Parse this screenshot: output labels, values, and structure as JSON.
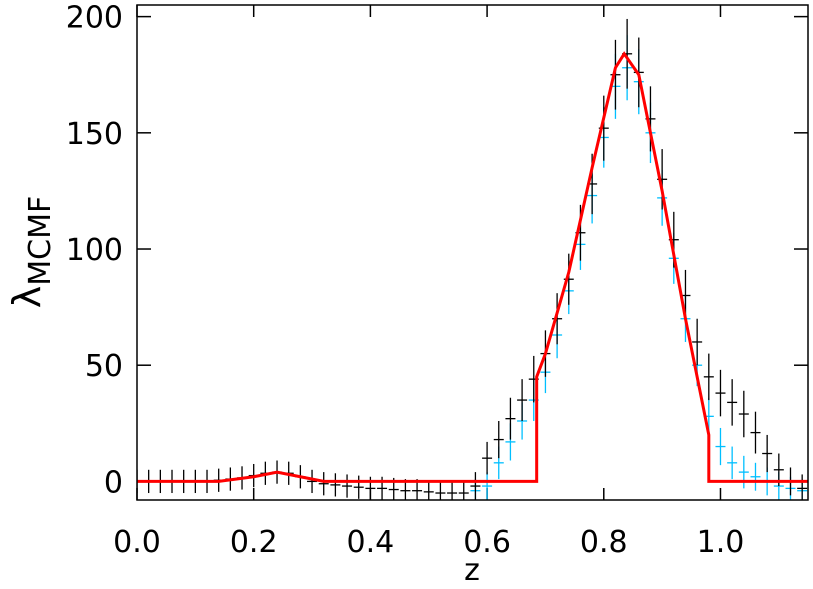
{
  "chart_data": {
    "type": "scatter",
    "xlabel": "z",
    "ylabel": "λ",
    "ylabel_sub": "MCMF",
    "xlim": [
      0,
      1.15
    ],
    "ylim": [
      -8,
      205
    ],
    "xticks": [
      {
        "value": 0,
        "label": "0.0"
      },
      0.2,
      0.4,
      0.6,
      0.8,
      {
        "value": 1,
        "label": "1.0"
      }
    ],
    "yticks": [
      0,
      50,
      100,
      150,
      200
    ],
    "x": [
      0,
      0.02,
      0.04,
      0.06,
      0.08,
      0.1,
      0.12,
      0.14,
      0.16,
      0.18,
      0.2,
      0.22,
      0.24,
      0.26,
      0.28,
      0.3,
      0.32,
      0.34,
      0.36,
      0.38,
      0.4,
      0.42,
      0.44,
      0.46,
      0.48,
      0.5,
      0.52,
      0.54,
      0.56,
      0.58,
      0.6,
      0.62,
      0.64,
      0.66,
      0.68,
      0.7,
      0.72,
      0.74,
      0.76,
      0.78,
      0.8,
      0.82,
      0.84,
      0.86,
      0.88,
      0.9,
      0.92,
      0.94,
      0.96,
      0.98,
      1,
      1.02,
      1.04,
      1.06,
      1.08,
      1.1,
      1.12,
      1.14
    ],
    "series": [
      {
        "color": "#00bfff",
        "values": [
          null,
          null,
          null,
          null,
          null,
          null,
          null,
          null,
          null,
          null,
          null,
          null,
          null,
          null,
          null,
          null,
          null,
          null,
          null,
          null,
          null,
          null,
          null,
          null,
          null,
          null,
          null,
          null,
          null,
          -4,
          -2,
          8,
          17,
          26,
          35,
          47,
          63,
          82,
          102,
          123,
          148,
          170,
          178,
          172,
          150,
          122,
          96,
          70,
          50,
          28,
          15,
          8,
          4,
          2,
          0,
          -2,
          -3,
          -4
        ],
        "errors": [
          null,
          null,
          null,
          null,
          null,
          null,
          null,
          null,
          null,
          null,
          null,
          null,
          null,
          null,
          null,
          null,
          null,
          null,
          null,
          null,
          null,
          null,
          null,
          null,
          null,
          null,
          null,
          null,
          null,
          5,
          6,
          7,
          8,
          8,
          9,
          9,
          10,
          10,
          11,
          12,
          13,
          14,
          14,
          14,
          13,
          12,
          11,
          10,
          9,
          8,
          8,
          7,
          7,
          6,
          6,
          6,
          5,
          5
        ]
      },
      {
        "color": "#000000",
        "values": [
          0,
          0,
          0,
          0,
          0,
          0,
          0,
          0.5,
          1,
          1.5,
          2.5,
          3.5,
          4,
          3.5,
          2,
          0,
          -1,
          -1.5,
          -2,
          -2.5,
          -3,
          -3,
          -3.5,
          -4,
          -4,
          -4.5,
          -5,
          -5,
          -5,
          -2,
          10,
          18,
          27,
          35,
          44,
          55,
          70,
          87,
          107,
          128,
          152,
          175,
          184,
          176,
          156,
          130,
          104,
          80,
          60,
          45,
          38,
          34,
          29,
          21,
          12,
          5,
          0,
          -3
        ],
        "errors": [
          5,
          5,
          5,
          5,
          5,
          5,
          5,
          5,
          5,
          5,
          5,
          5,
          5,
          5,
          5,
          5,
          5,
          5,
          5,
          5,
          5,
          5,
          5,
          5,
          5,
          5,
          5,
          5,
          5,
          6,
          7,
          8,
          9,
          9,
          10,
          10,
          11,
          11,
          12,
          13,
          14,
          15,
          15,
          15,
          14,
          13,
          12,
          11,
          10,
          10,
          10,
          10,
          10,
          9,
          8,
          7,
          6,
          6
        ]
      }
    ],
    "model": {
      "color": "#ff0000",
      "x": [
        0,
        0.14,
        0.2,
        0.24,
        0.28,
        0.32,
        0.58,
        0.685,
        0.685,
        0.7,
        0.74,
        0.78,
        0.82,
        0.835,
        0.86,
        0.9,
        0.94,
        0.98,
        0.98,
        1.15
      ],
      "values": [
        0,
        0,
        2,
        4,
        2,
        0,
        0,
        0,
        45,
        55,
        90,
        135,
        178,
        184,
        175,
        125,
        70,
        20,
        0,
        0
      ]
    }
  }
}
